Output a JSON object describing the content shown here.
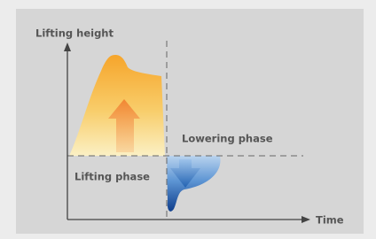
{
  "y_axis_label": "Lifting height",
  "x_axis_label": "Time",
  "phases": {
    "lowering": "Lowering phase",
    "lifting": "Lifting phase"
  }
}
